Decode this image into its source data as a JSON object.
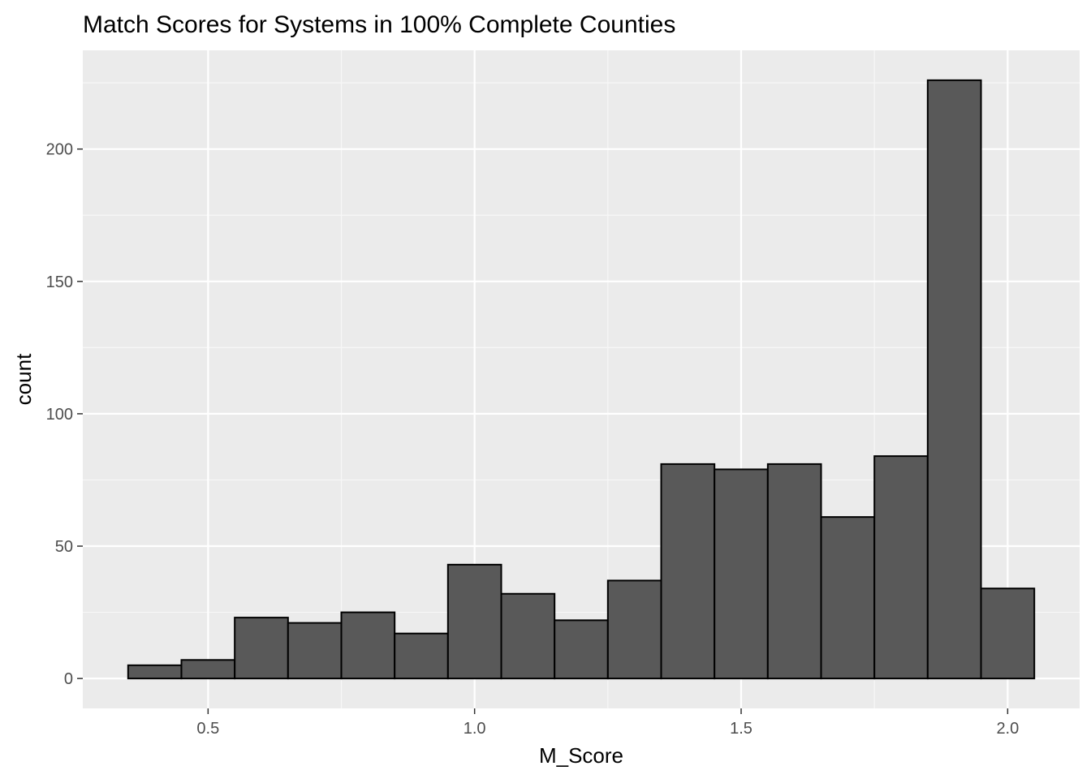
{
  "chart_data": {
    "type": "bar",
    "title": "Match Scores for Systems in 100% Complete Counties",
    "xlabel": "M_Score",
    "ylabel": "count",
    "bin_width": 0.1,
    "bins": [
      {
        "start": 0.35,
        "end": 0.45,
        "count": 5
      },
      {
        "start": 0.45,
        "end": 0.55,
        "count": 7
      },
      {
        "start": 0.55,
        "end": 0.65,
        "count": 23
      },
      {
        "start": 0.65,
        "end": 0.75,
        "count": 21
      },
      {
        "start": 0.75,
        "end": 0.85,
        "count": 25
      },
      {
        "start": 0.85,
        "end": 0.95,
        "count": 17
      },
      {
        "start": 0.95,
        "end": 1.05,
        "count": 43
      },
      {
        "start": 1.05,
        "end": 1.15,
        "count": 32
      },
      {
        "start": 1.15,
        "end": 1.25,
        "count": 22
      },
      {
        "start": 1.25,
        "end": 1.35,
        "count": 37
      },
      {
        "start": 1.35,
        "end": 1.45,
        "count": 81
      },
      {
        "start": 1.45,
        "end": 1.55,
        "count": 79
      },
      {
        "start": 1.55,
        "end": 1.65,
        "count": 81
      },
      {
        "start": 1.65,
        "end": 1.75,
        "count": 61
      },
      {
        "start": 1.75,
        "end": 1.85,
        "count": 84
      },
      {
        "start": 1.85,
        "end": 1.95,
        "count": 226
      },
      {
        "start": 1.95,
        "end": 2.05,
        "count": 34
      }
    ],
    "xlim": [
      0.265,
      2.135
    ],
    "ylim": [
      -11.3,
      237.3
    ],
    "x_ticks": [
      {
        "value": 0.5,
        "label": "0.5"
      },
      {
        "value": 1.0,
        "label": "1.0"
      },
      {
        "value": 1.5,
        "label": "1.5"
      },
      {
        "value": 2.0,
        "label": "2.0"
      }
    ],
    "y_ticks": [
      {
        "value": 0,
        "label": "0"
      },
      {
        "value": 50,
        "label": "50"
      },
      {
        "value": 100,
        "label": "100"
      },
      {
        "value": 150,
        "label": "150"
      },
      {
        "value": 200,
        "label": "200"
      }
    ],
    "x_minor_gridlines": [
      0.75,
      1.25,
      1.75
    ],
    "y_minor_gridlines": [
      25,
      75,
      125,
      175,
      225
    ],
    "grid": true,
    "legend": "none",
    "colors": {
      "panel_background": "#ebebeb",
      "grid_major": "#ffffff",
      "grid_minor": "#f7f7f7",
      "bar_fill": "#595959",
      "bar_outline": "#000000",
      "tick_text": "#4d4d4d",
      "tick_mark": "#333333"
    }
  }
}
